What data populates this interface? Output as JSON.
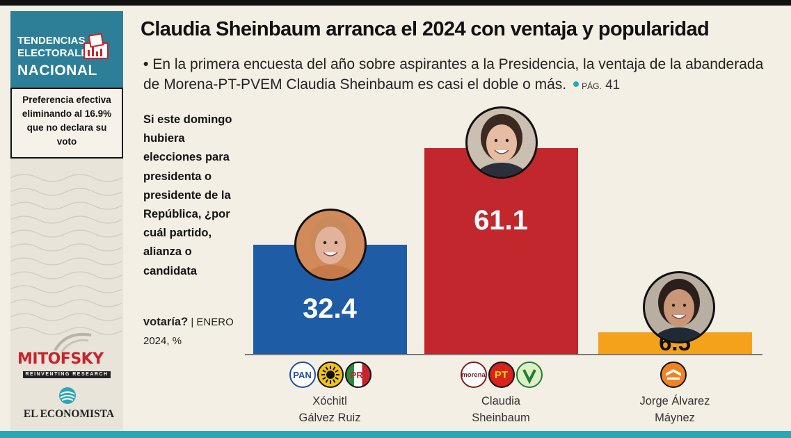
{
  "sidebar": {
    "brand_line1": "TENDENCIAS",
    "brand_line2": "ELECTORALES",
    "brand_line3": "NACIONAL",
    "note": "Preferencia efectiva eliminando al 16.9% que no declara su voto",
    "mitofsky": "MITOFSKY",
    "mitofsky_tagline": "REINVENTING RESEARCH",
    "economista": "EL ECONOMISTA"
  },
  "header": {
    "title": "Claudia Sheinbaum arranca el 2024 con ventaja y popularidad",
    "bullet": "•",
    "subtitle": "En la primera encuesta del año sobre aspirantes a la Presidencia, la ventaja de la abanderada de Morena-PT-PVEM Claudia Sheinbaum es casi el doble o más.",
    "page_prefix": "PÁG.",
    "page_number": "41"
  },
  "question": {
    "text": "Si este domingo hubiera elecciones para presidenta o presidente de la República, ¿por cuál partido, alianza o candidata",
    "last_word": "votaría?",
    "meta": "| ENERO 2024, %"
  },
  "chart_data": {
    "type": "bar",
    "categories": [
      "Xóchitl Gálvez Ruiz",
      "Claudia Sheinbaum",
      "Jorge Álvarez Máynez"
    ],
    "values": [
      32.4,
      61.1,
      6.5
    ],
    "value_labels": [
      "32.4",
      "61.1",
      "6.5"
    ],
    "name_lines": [
      [
        "Xóchitl",
        "Gálvez Ruiz"
      ],
      [
        "Claudia",
        "Sheinbaum"
      ],
      [
        "Jorge Álvarez",
        "Máynez"
      ]
    ],
    "colors": [
      "#1f5ca6",
      "#c1272d",
      "#f4a21b"
    ],
    "parties": [
      [
        "PAN",
        "PRD",
        "PRI"
      ],
      [
        "morena",
        "PT",
        "PVEM"
      ],
      [
        "MC"
      ]
    ],
    "party_labels": {
      "PAN": "PAN",
      "PRI": "PRI",
      "morena": "morena",
      "PT": "PT"
    },
    "title": "",
    "ylim": [
      0,
      61.1
    ],
    "grid": false,
    "legend": "none"
  }
}
